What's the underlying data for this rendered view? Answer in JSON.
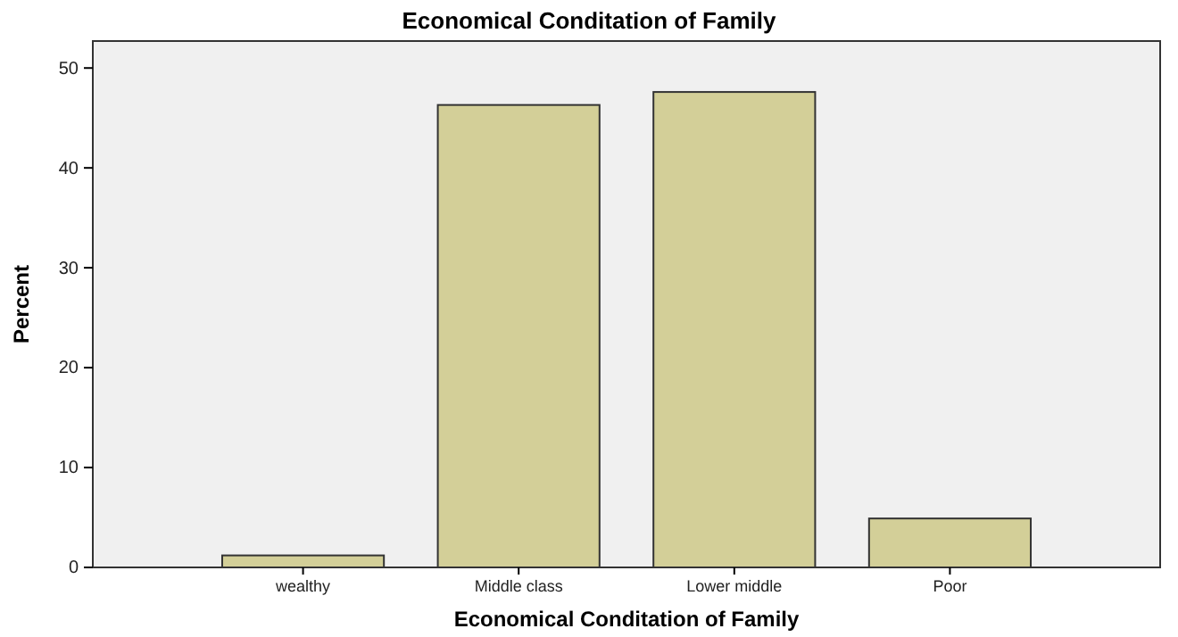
{
  "chart_data": {
    "type": "bar",
    "title": "Economical Conditation of Family",
    "xlabel": "Economical Conditation of Family",
    "ylabel": "Percent",
    "categories": [
      "wealthy",
      "Middle class",
      "Lower middle",
      "Poor"
    ],
    "values": [
      1.2,
      46.3,
      47.6,
      4.9
    ],
    "color": "#d3cf98",
    "ylim": [
      0,
      52.7
    ],
    "yticks": [
      0,
      10,
      20,
      30,
      40,
      50
    ],
    "grid": false
  }
}
